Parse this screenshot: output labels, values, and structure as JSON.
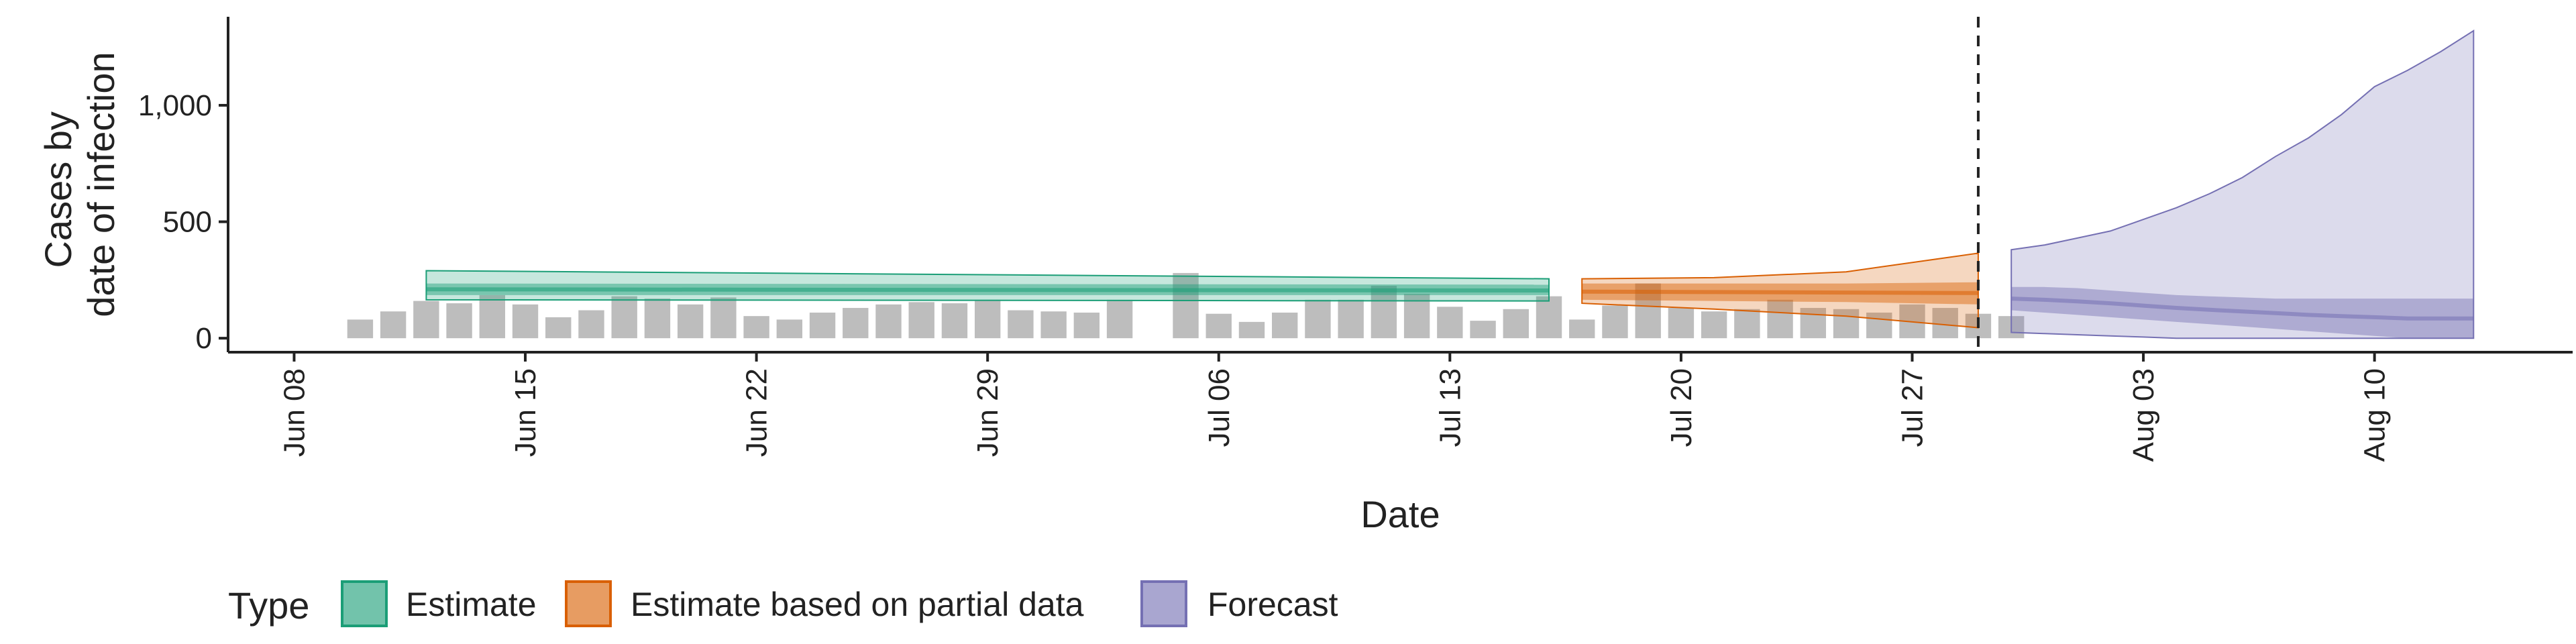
{
  "chart_data": {
    "type": "area",
    "title": "",
    "xlabel": "Date",
    "ylabel_lines": [
      "Cases by",
      "date of infection"
    ],
    "y_ticks": [
      0,
      500,
      1000
    ],
    "y_tick_labels": [
      "0",
      "500",
      "1,000"
    ],
    "ylim": [
      -60,
      1380
    ],
    "xlim": [
      "2020-06-06",
      "2020-08-16"
    ],
    "x_ticks": [
      "2020-06-08",
      "2020-06-15",
      "2020-06-22",
      "2020-06-29",
      "2020-07-06",
      "2020-07-13",
      "2020-07-20",
      "2020-07-27",
      "2020-08-03",
      "2020-08-10"
    ],
    "x_tick_labels": [
      "Jun 08",
      "Jun 15",
      "Jun 22",
      "Jun 29",
      "Jul 06",
      "Jul 13",
      "Jul 20",
      "Jul 27",
      "Aug 03",
      "Aug 10"
    ],
    "forecast_date": "2020-07-29",
    "reported_cases": {
      "start_date": "2020-06-10",
      "values": [
        80,
        115,
        160,
        150,
        185,
        145,
        90,
        120,
        180,
        170,
        145,
        175,
        95,
        80,
        110,
        130,
        145,
        155,
        150,
        165,
        120,
        115,
        110,
        165,
        null,
        280,
        105,
        70,
        110,
        165,
        165,
        225,
        190,
        135,
        75,
        125,
        180,
        80,
        140,
        235,
        130,
        115,
        125,
        165,
        130,
        125,
        110,
        145,
        130,
        105,
        95
      ]
    },
    "legend": {
      "title": "Type",
      "position": "bottom",
      "entries": [
        "Estimate",
        "Estimate based on partial data",
        "Forecast"
      ]
    },
    "series": [
      {
        "name": "Estimate",
        "color": "#1b9e77",
        "start_date": "2020-06-12",
        "end_date": "2020-07-16",
        "lower90": [
          165,
          160
        ],
        "upper90": [
          290,
          255
        ],
        "lower50": [
          185,
          185
        ],
        "upper50": [
          235,
          230
        ],
        "median": [
          210,
          205
        ]
      },
      {
        "name": "Estimate based on partial data",
        "color": "#d95f02",
        "start_date": "2020-07-17",
        "end_date": "2020-07-29",
        "lower90": [
          150,
          125,
          95,
          45
        ],
        "upper90": [
          255,
          260,
          285,
          365
        ],
        "lower50": [
          165,
          160,
          155,
          145
        ],
        "upper50": [
          235,
          235,
          235,
          240
        ],
        "median": [
          200,
          198,
          196,
          194
        ]
      },
      {
        "name": "Forecast",
        "color": "#7570b3",
        "start_date": "2020-07-30",
        "end_date": "2020-08-13",
        "lower90": [
          25,
          20,
          15,
          10,
          5,
          0,
          0,
          0,
          0,
          0,
          0,
          0,
          0,
          0,
          0
        ],
        "upper90": [
          380,
          400,
          430,
          460,
          510,
          560,
          620,
          690,
          780,
          860,
          960,
          1080,
          1150,
          1230,
          1320
        ],
        "lower50": [
          120,
          110,
          100,
          90,
          80,
          70,
          60,
          50,
          40,
          30,
          20,
          10,
          0,
          0,
          0
        ],
        "upper50": [
          220,
          220,
          215,
          205,
          195,
          185,
          180,
          175,
          170,
          170,
          170,
          170,
          170,
          170,
          170
        ],
        "median": [
          170,
          165,
          158,
          150,
          140,
          130,
          122,
          115,
          108,
          100,
          95,
          90,
          85,
          85,
          85
        ]
      }
    ]
  }
}
